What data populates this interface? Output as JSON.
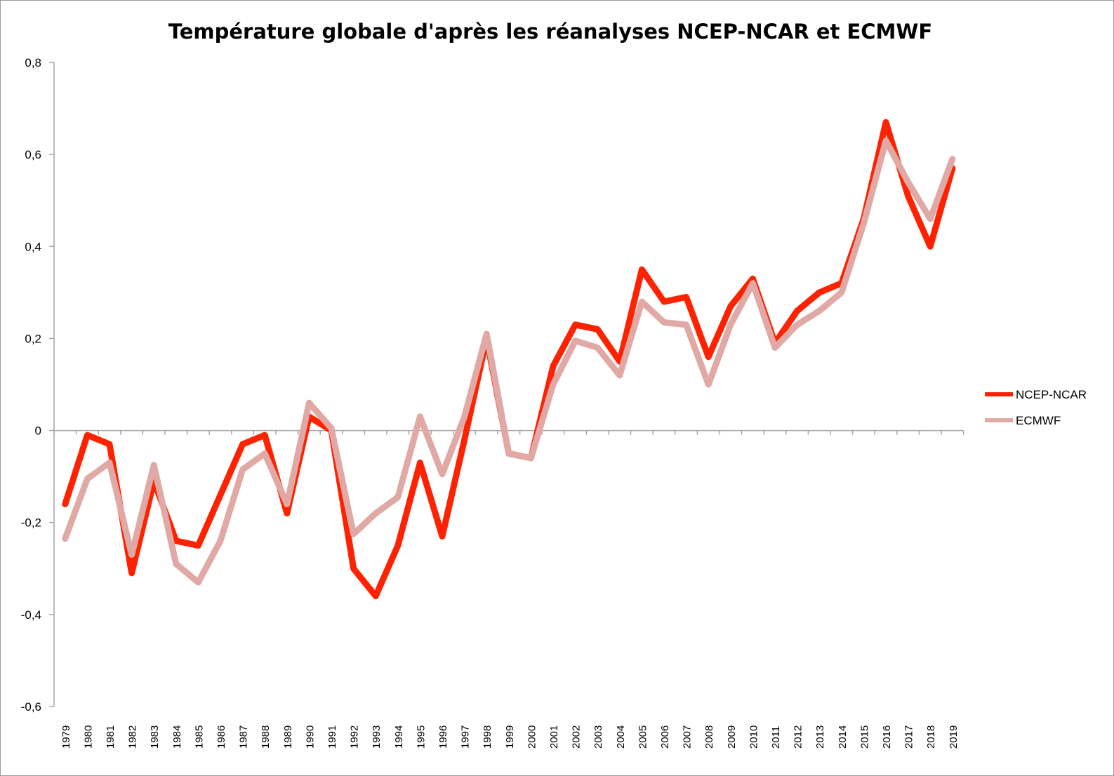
{
  "chart_data": {
    "type": "line",
    "title": "Température globale d'après les réanalyses NCEP-NCAR et ECMWF",
    "xlabel": "",
    "ylabel": "",
    "ylim": [
      -0.6,
      0.8
    ],
    "yticks": [
      "-0,6",
      "-0,4",
      "-0,2",
      "0",
      "0,2",
      "0,4",
      "0,6",
      "0,8"
    ],
    "ytick_values": [
      -0.6,
      -0.4,
      -0.2,
      0,
      0.2,
      0.4,
      0.6,
      0.8
    ],
    "grid": false,
    "legend_placement": "right",
    "categories": [
      "1979",
      "1980",
      "1981",
      "1982",
      "1983",
      "1984",
      "1985",
      "1986",
      "1987",
      "1988",
      "1989",
      "1990",
      "1991",
      "1992",
      "1993",
      "1994",
      "1995",
      "1996",
      "1997",
      "1998",
      "1999",
      "2000",
      "2001",
      "2002",
      "2003",
      "2004",
      "2005",
      "2006",
      "2007",
      "2008",
      "2009",
      "2010",
      "2011",
      "2012",
      "2013",
      "2014",
      "2015",
      "2016",
      "2017",
      "2018",
      "2019"
    ],
    "series": [
      {
        "name": "NCEP-NCAR",
        "color": "#ff2200",
        "values": [
          -0.16,
          -0.01,
          -0.03,
          -0.31,
          -0.11,
          -0.24,
          -0.25,
          -0.14,
          -0.03,
          -0.01,
          -0.18,
          0.03,
          0.0,
          -0.3,
          -0.36,
          -0.25,
          -0.07,
          -0.23,
          -0.02,
          0.2,
          -0.05,
          -0.06,
          0.14,
          0.23,
          0.22,
          0.15,
          0.35,
          0.28,
          0.29,
          0.16,
          0.27,
          0.33,
          0.19,
          0.26,
          0.3,
          0.32,
          0.46,
          0.67,
          0.51,
          0.4,
          0.57
        ]
      },
      {
        "name": "ECMWF",
        "color": "#e0a9a6",
        "values": [
          -0.235,
          -0.105,
          -0.07,
          -0.27,
          -0.075,
          -0.29,
          -0.33,
          -0.24,
          -0.085,
          -0.05,
          -0.16,
          0.06,
          0.005,
          -0.225,
          -0.18,
          -0.145,
          0.03,
          -0.095,
          0.03,
          0.21,
          -0.05,
          -0.06,
          0.1,
          0.195,
          0.18,
          0.12,
          0.28,
          0.235,
          0.23,
          0.1,
          0.23,
          0.32,
          0.18,
          0.23,
          0.26,
          0.3,
          0.45,
          0.63,
          0.54,
          0.46,
          0.59
        ]
      }
    ]
  }
}
